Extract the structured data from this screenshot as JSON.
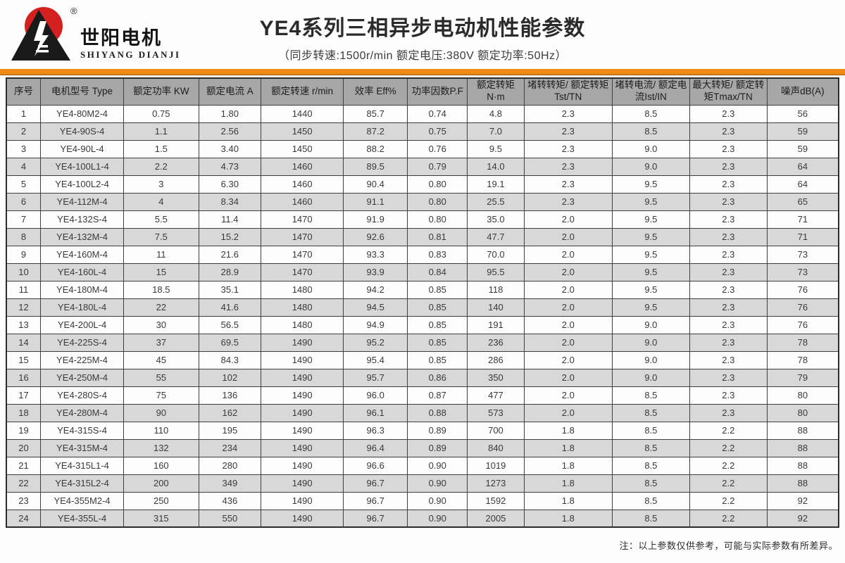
{
  "logo": {
    "brand_cn": "世阳电机",
    "brand_en": "SHIYANG DIANJI",
    "registered_mark": "®",
    "colors": {
      "sun_red": "#d42120",
      "mountain_black": "#1a1a1a"
    }
  },
  "header": {
    "title": "YE4系列三相异步电动机性能参数",
    "subtitle": "（同步转速:1500r/min   额定电压:380V   额定功率:50Hz）"
  },
  "accent_color": "#ee8a15",
  "table": {
    "columns": [
      "序号",
      "电机型号 Type",
      "额定功率 KW",
      "额定电流 A",
      "额定转速 r/min",
      "效率 Eff%",
      "功率因数P.F",
      "额定转矩N·m",
      "堵转转矩/ 额定转矩Tst/TN",
      "堵转电流/ 额定电流Ist/IN",
      "最大转矩/ 额定转矩Tmax/TN",
      "噪声dB(A)"
    ],
    "rows": [
      [
        "1",
        "YE4-80M2-4",
        "0.75",
        "1.80",
        "1440",
        "85.7",
        "0.74",
        "4.8",
        "2.3",
        "8.5",
        "2.3",
        "56"
      ],
      [
        "2",
        "YE4-90S-4",
        "1.1",
        "2.56",
        "1450",
        "87.2",
        "0.75",
        "7.0",
        "2.3",
        "8.5",
        "2.3",
        "59"
      ],
      [
        "3",
        "YE4-90L-4",
        "1.5",
        "3.40",
        "1450",
        "88.2",
        "0.76",
        "9.5",
        "2.3",
        "9.0",
        "2.3",
        "59"
      ],
      [
        "4",
        "YE4-100L1-4",
        "2.2",
        "4.73",
        "1460",
        "89.5",
        "0.79",
        "14.0",
        "2.3",
        "9.0",
        "2.3",
        "64"
      ],
      [
        "5",
        "YE4-100L2-4",
        "3",
        "6.30",
        "1460",
        "90.4",
        "0.80",
        "19.1",
        "2.3",
        "9.5",
        "2.3",
        "64"
      ],
      [
        "6",
        "YE4-112M-4",
        "4",
        "8.34",
        "1460",
        "91.1",
        "0.80",
        "25.5",
        "2.3",
        "9.5",
        "2.3",
        "65"
      ],
      [
        "7",
        "YE4-132S-4",
        "5.5",
        "11.4",
        "1470",
        "91.9",
        "0.80",
        "35.0",
        "2.0",
        "9.5",
        "2.3",
        "71"
      ],
      [
        "8",
        "YE4-132M-4",
        "7.5",
        "15.2",
        "1470",
        "92.6",
        "0.81",
        "47.7",
        "2.0",
        "9.5",
        "2.3",
        "71"
      ],
      [
        "9",
        "YE4-160M-4",
        "11",
        "21.6",
        "1470",
        "93.3",
        "0.83",
        "70.0",
        "2.0",
        "9.5",
        "2.3",
        "73"
      ],
      [
        "10",
        "YE4-160L-4",
        "15",
        "28.9",
        "1470",
        "93.9",
        "0.84",
        "95.5",
        "2.0",
        "9.5",
        "2.3",
        "73"
      ],
      [
        "11",
        "YE4-180M-4",
        "18.5",
        "35.1",
        "1480",
        "94.2",
        "0.85",
        "118",
        "2.0",
        "9.5",
        "2.3",
        "76"
      ],
      [
        "12",
        "YE4-180L-4",
        "22",
        "41.6",
        "1480",
        "94.5",
        "0.85",
        "140",
        "2.0",
        "9.5",
        "2.3",
        "76"
      ],
      [
        "13",
        "YE4-200L-4",
        "30",
        "56.5",
        "1480",
        "94.9",
        "0.85",
        "191",
        "2.0",
        "9.0",
        "2.3",
        "76"
      ],
      [
        "14",
        "YE4-225S-4",
        "37",
        "69.5",
        "1490",
        "95.2",
        "0.85",
        "236",
        "2.0",
        "9.0",
        "2.3",
        "78"
      ],
      [
        "15",
        "YE4-225M-4",
        "45",
        "84.3",
        "1490",
        "95.4",
        "0.85",
        "286",
        "2.0",
        "9.0",
        "2.3",
        "78"
      ],
      [
        "16",
        "YE4-250M-4",
        "55",
        "102",
        "1490",
        "95.7",
        "0.86",
        "350",
        "2.0",
        "9.0",
        "2.3",
        "79"
      ],
      [
        "17",
        "YE4-280S-4",
        "75",
        "136",
        "1490",
        "96.0",
        "0.87",
        "477",
        "2.0",
        "8.5",
        "2.3",
        "80"
      ],
      [
        "18",
        "YE4-280M-4",
        "90",
        "162",
        "1490",
        "96.1",
        "0.88",
        "573",
        "2.0",
        "8.5",
        "2.3",
        "80"
      ],
      [
        "19",
        "YE4-315S-4",
        "110",
        "195",
        "1490",
        "96.3",
        "0.89",
        "700",
        "1.8",
        "8.5",
        "2.2",
        "88"
      ],
      [
        "20",
        "YE4-315M-4",
        "132",
        "234",
        "1490",
        "96.4",
        "0.89",
        "840",
        "1.8",
        "8.5",
        "2.2",
        "88"
      ],
      [
        "21",
        "YE4-315L1-4",
        "160",
        "280",
        "1490",
        "96.6",
        "0.90",
        "1019",
        "1.8",
        "8.5",
        "2.2",
        "88"
      ],
      [
        "22",
        "YE4-315L2-4",
        "200",
        "349",
        "1490",
        "96.7",
        "0.90",
        "1273",
        "1.8",
        "8.5",
        "2.2",
        "88"
      ],
      [
        "23",
        "YE4-355M2-4",
        "250",
        "436",
        "1490",
        "96.7",
        "0.90",
        "1592",
        "1.8",
        "8.5",
        "2.2",
        "92"
      ],
      [
        "24",
        "YE4-355L-4",
        "315",
        "550",
        "1490",
        "96.7",
        "0.90",
        "2005",
        "1.8",
        "8.5",
        "2.2",
        "92"
      ]
    ]
  },
  "footer": {
    "note": "注：以上参数仅供参考，可能与实际参数有所差异。"
  }
}
